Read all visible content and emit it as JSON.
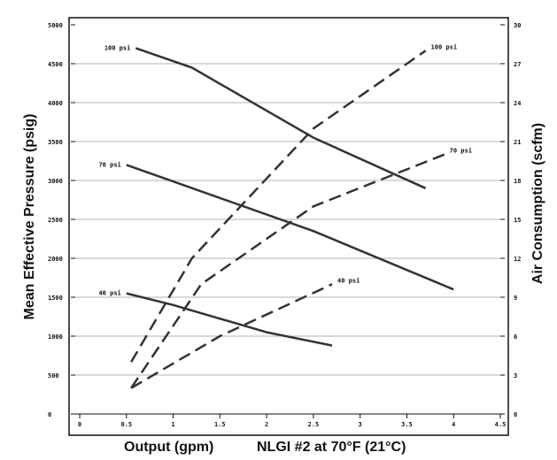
{
  "chart_data": {
    "type": "line",
    "xlabel": "Output (gpm)",
    "xlabel_note": "NLGI #2 at 70°F (21°C)",
    "ylabel_left": "Mean Effective Pressure (psig)",
    "ylabel_right": "Air Consumption (scfm)",
    "xlim": [
      0,
      4.5
    ],
    "ylim_left": [
      0,
      5000
    ],
    "ylim_right": [
      0,
      30
    ],
    "x_ticks": [
      "0",
      "0.5",
      "1",
      "1.5",
      "2",
      "2.5",
      "3",
      "3.5",
      "4",
      "4.5"
    ],
    "y_left_ticks": [
      "0",
      "500",
      "1000",
      "1500",
      "2000",
      "2500",
      "3000",
      "3500",
      "4000",
      "4500",
      "5000"
    ],
    "y_right_ticks": [
      "0",
      "3",
      "6",
      "9",
      "12",
      "15",
      "18",
      "21",
      "24",
      "27",
      "30"
    ],
    "grid": "horizontal",
    "series": [
      {
        "name": "100 psi",
        "style": "solid",
        "axis": "left",
        "x": [
          0.6,
          1.2,
          2.5,
          3.7
        ],
        "y": [
          4700,
          4450,
          3550,
          2900
        ]
      },
      {
        "name": "70 psi",
        "style": "solid",
        "axis": "left",
        "x": [
          0.5,
          2.5,
          4.0
        ],
        "y": [
          3200,
          2350,
          1600
        ]
      },
      {
        "name": "40 psi",
        "style": "solid",
        "axis": "left",
        "x": [
          0.5,
          1.0,
          2.0,
          2.7
        ],
        "y": [
          1550,
          1400,
          1050,
          880
        ]
      },
      {
        "name": "100 psi",
        "style": "dashed",
        "axis": "right",
        "x": [
          0.55,
          1.2,
          2.5,
          3.7
        ],
        "y": [
          4.0,
          12.0,
          22.0,
          28.0
        ]
      },
      {
        "name": "70 psi",
        "style": "dashed",
        "axis": "right",
        "x": [
          0.55,
          1.3,
          2.5,
          3.9
        ],
        "y": [
          2.0,
          10.0,
          16.0,
          20.0
        ]
      },
      {
        "name": "40 psi",
        "style": "dashed",
        "axis": "right",
        "x": [
          0.55,
          1.5,
          2.7
        ],
        "y": [
          2.0,
          6.0,
          10.0
        ]
      }
    ]
  }
}
